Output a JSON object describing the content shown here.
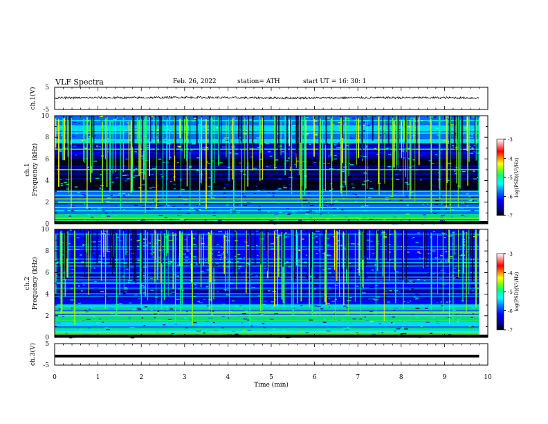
{
  "header": {
    "title": "VLF  Spectra",
    "date": "Feb. 26, 2022",
    "station": "station= ATH",
    "start_ut": "start  UT  =    16: 30: 1"
  },
  "colors": {
    "spectrogram_scale": [
      "#000000",
      "#00008b",
      "#0000ff",
      "#0080ff",
      "#00ffff",
      "#00ff80",
      "#80ff00",
      "#ffff00",
      "#ff8000",
      "#ff0000",
      "#ff8080",
      "#ffffff"
    ]
  },
  "chart_data": [
    {
      "type": "line",
      "panel": "ch1-waveform",
      "ylabel": "ch.1(V)",
      "yticks": [
        "5",
        "-5"
      ],
      "ylim": [
        -5,
        5
      ],
      "x": [
        0,
        1,
        2,
        3,
        4,
        5,
        6,
        7,
        8,
        9,
        9.8
      ],
      "values": [
        0.2,
        0.3,
        0.3,
        0.5,
        0.3,
        0.2,
        0.2,
        0.3,
        0.3,
        0.3,
        0.2
      ],
      "xlim": [
        0,
        10
      ]
    },
    {
      "type": "heatmap",
      "panel": "ch1-spectrogram",
      "ylabel": "ch.1\nFrequency (kHz)",
      "yticks": [
        "0",
        "2",
        "4",
        "6",
        "8",
        "10"
      ],
      "ylim": [
        0,
        10
      ],
      "xlim": [
        0,
        10
      ],
      "data_end_min": 9.8,
      "colorbar": {
        "label": "log(PSD)(V²/Hz)",
        "ticks": [
          "-3",
          "-4",
          "-5",
          "-6",
          "-7"
        ],
        "range": [
          -7,
          -3
        ]
      },
      "description_bands_khz": [
        0.5,
        1.5,
        2.0,
        2.3,
        3.0,
        5.0,
        6.9
      ]
    },
    {
      "type": "heatmap",
      "panel": "ch2-spectrogram",
      "ylabel": "ch.2\nFrequency (kHz)",
      "yticks": [
        "0",
        "2",
        "4",
        "6",
        "8",
        "10"
      ],
      "ylim": [
        0,
        10
      ],
      "xlim": [
        0,
        10
      ],
      "data_end_min": 9.8,
      "colorbar": {
        "label": "log(PSD)(V²/Hz)",
        "ticks": [
          "-3",
          "-4",
          "-5",
          "-6",
          "-7"
        ],
        "range": [
          -7,
          -3
        ]
      },
      "description_bands_khz": [
        0.5,
        1.5,
        2.0,
        2.3,
        3.0,
        5.0,
        6.9
      ]
    },
    {
      "type": "line",
      "panel": "ch3-waveform",
      "ylabel": "ch.3(V)",
      "yticks": [
        "5",
        "-5"
      ],
      "ylim": [
        -5,
        5
      ],
      "x": [
        0,
        9.8
      ],
      "values": [
        -0.8,
        -0.8
      ],
      "xlim": [
        0,
        10
      ],
      "xlabel": "Time  (min)",
      "xticks": [
        "0",
        "1",
        "2",
        "3",
        "4",
        "5",
        "6",
        "7",
        "8",
        "9",
        "10"
      ]
    }
  ]
}
